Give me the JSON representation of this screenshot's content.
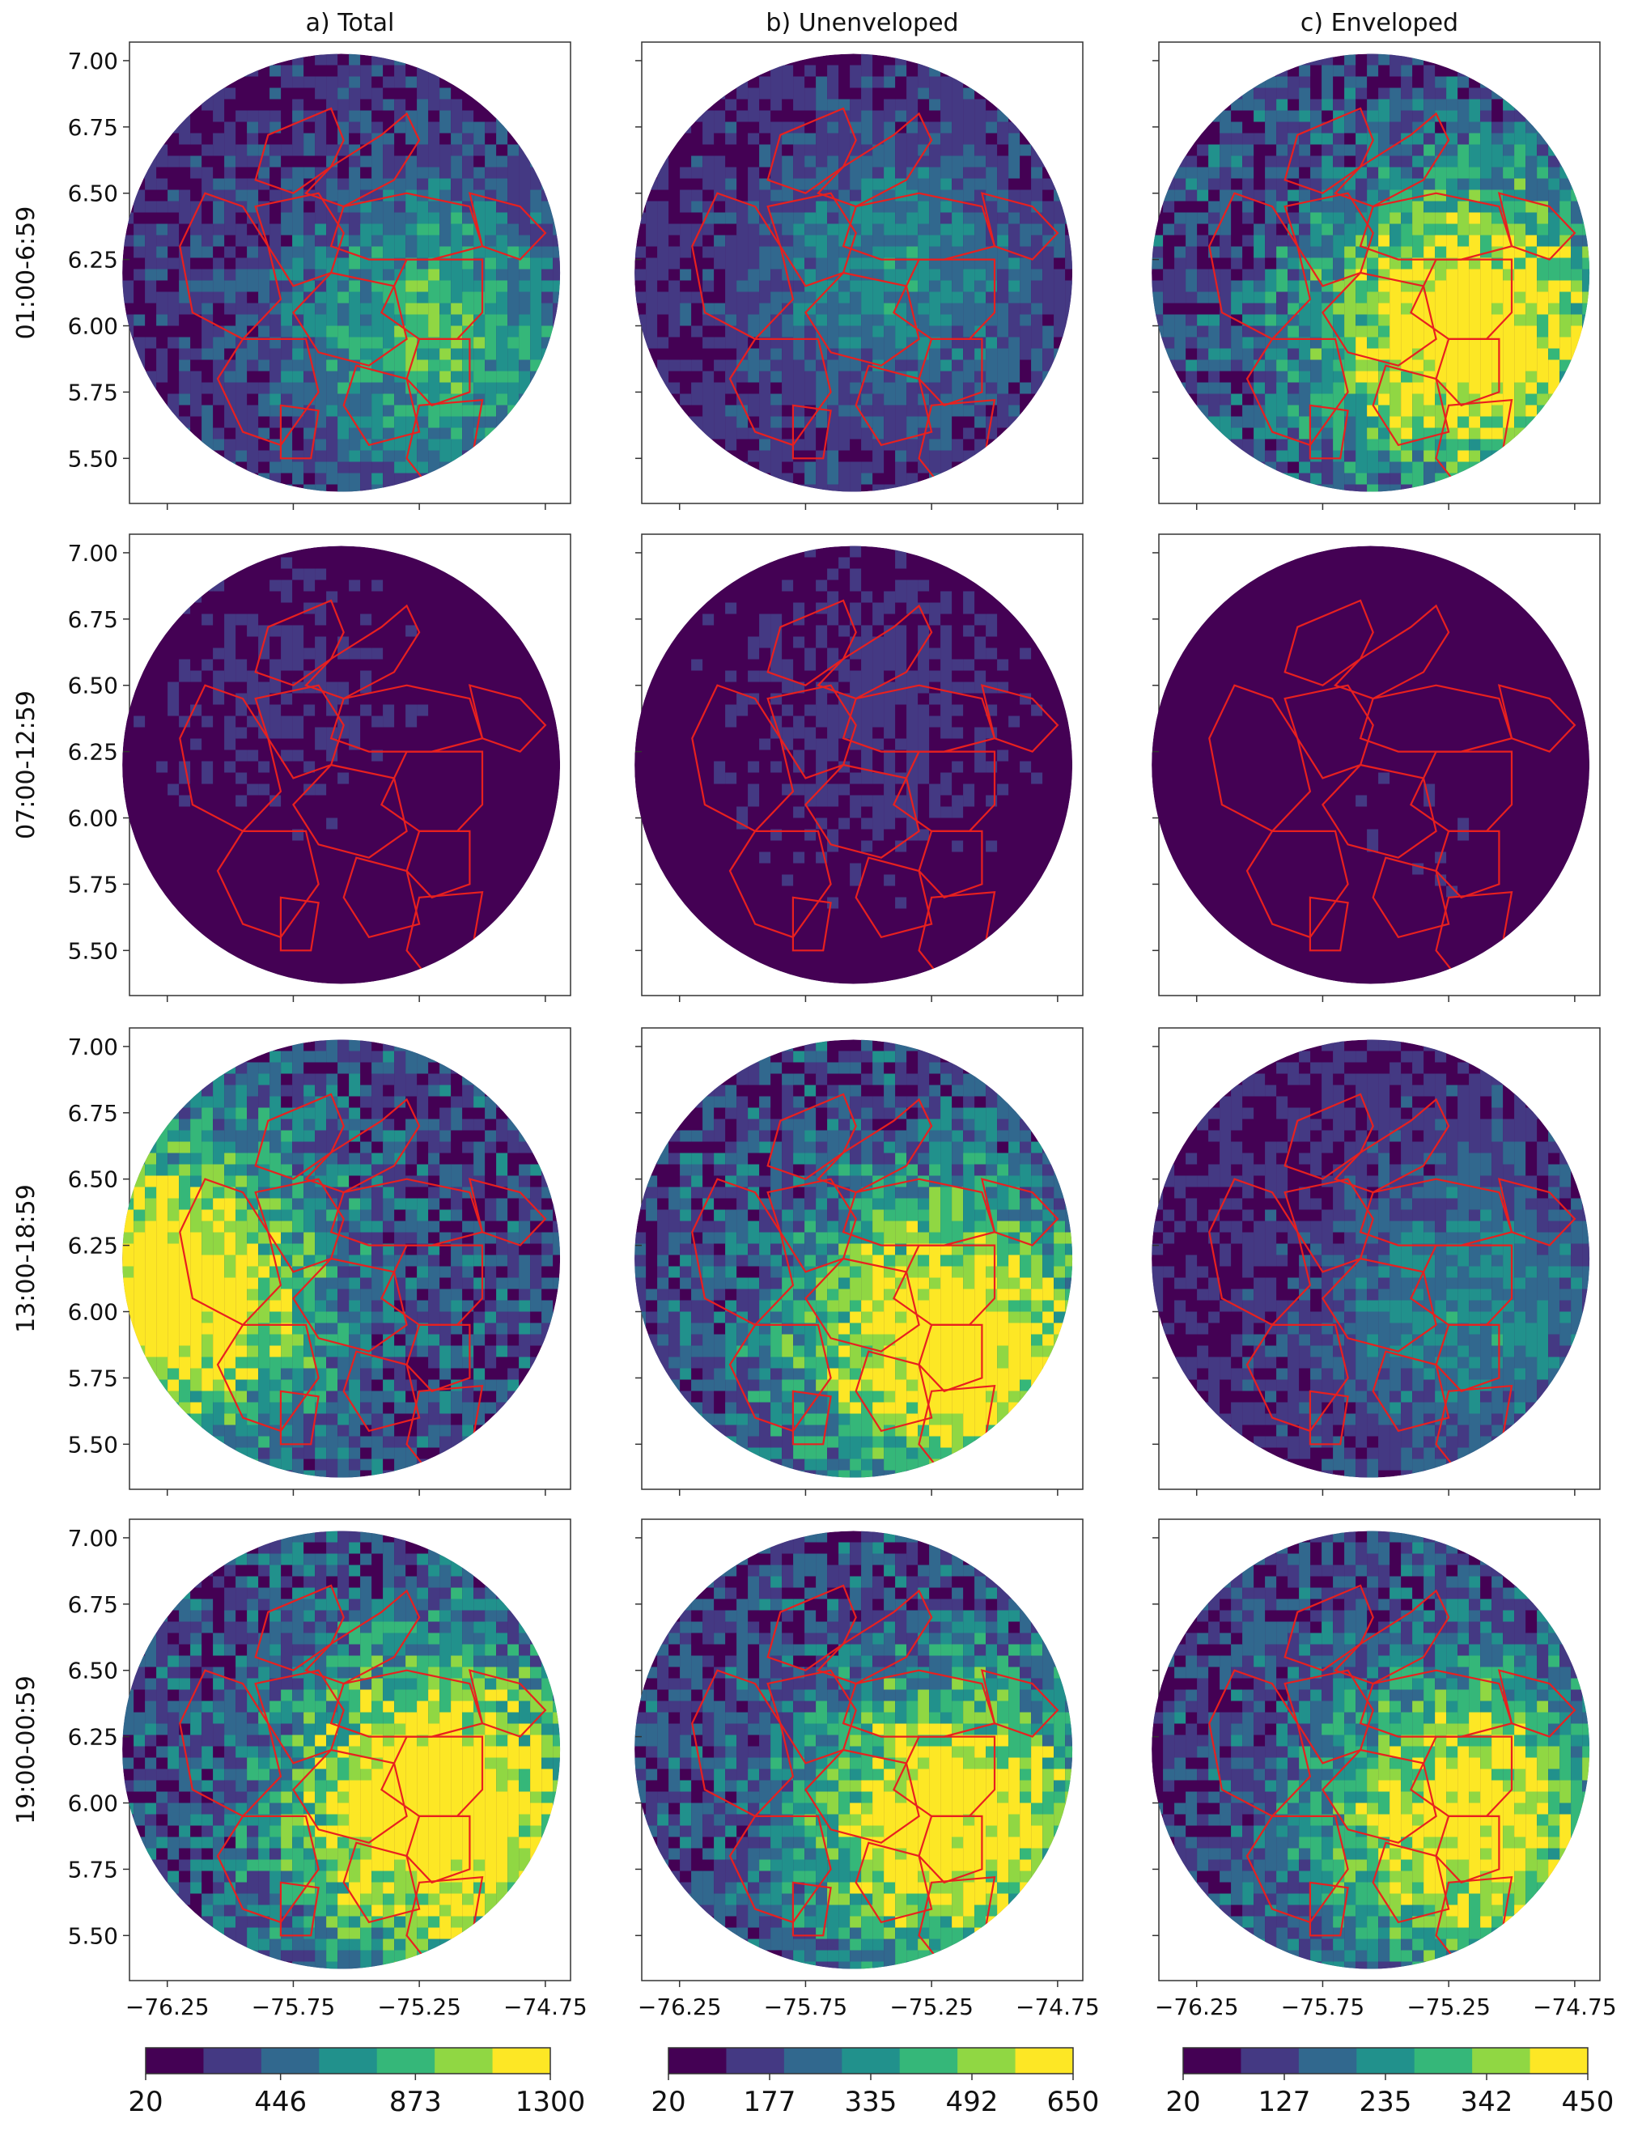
{
  "columns": [
    {
      "title": "a) Total",
      "colorbar_ticks": [
        "20",
        "446",
        "873",
        "1300"
      ],
      "range": [
        20,
        1300
      ]
    },
    {
      "title": "b) Unenveloped",
      "colorbar_ticks": [
        "20",
        "177",
        "335",
        "492",
        "650"
      ],
      "range": [
        20,
        650
      ]
    },
    {
      "title": "c) Enveloped",
      "colorbar_ticks": [
        "20",
        "127",
        "235",
        "342",
        "450"
      ],
      "range": [
        20,
        450
      ]
    }
  ],
  "rows": [
    {
      "label": "01:00-6:59"
    },
    {
      "label": "07:00-12:59"
    },
    {
      "label": "13:00-18:59"
    },
    {
      "label": "19:00-00:59"
    }
  ],
  "y_ticks": [
    "7.00",
    "6.75",
    "6.50",
    "6.25",
    "6.00",
    "5.75",
    "5.50"
  ],
  "x_ticks": [
    "−76.25",
    "−75.75",
    "−75.25",
    "−74.75"
  ],
  "colormap": {
    "name": "viridis (discrete, 7 levels)",
    "colors": [
      "#440154",
      "#443983",
      "#31688e",
      "#21918c",
      "#35b779",
      "#90d743",
      "#fde725"
    ]
  },
  "boundary_color": "#e8201f",
  "chart_data": {
    "type": "heatmap",
    "layout": "4 rows x 3 columns of circular radar-style maps",
    "x_axis": {
      "ticks": [
        -76.25,
        -75.75,
        -75.25,
        -74.75
      ],
      "range": [
        -76.4,
        -74.65
      ]
    },
    "y_axis": {
      "ticks": [
        7.0,
        6.75,
        6.5,
        6.25,
        6.0,
        5.75,
        5.5
      ],
      "range": [
        5.33,
        7.07
      ]
    },
    "hotspots": [
      {
        "row": 0,
        "col": 0,
        "lon": -75.2,
        "lat": 6.0,
        "level": 0.5
      },
      {
        "row": 0,
        "col": 1,
        "lon": -75.4,
        "lat": 6.2,
        "level": 0.35
      },
      {
        "row": 0,
        "col": 2,
        "lon": -75.2,
        "lat": 6.0,
        "level": 0.9
      },
      {
        "row": 1,
        "col": 0,
        "lon": -75.8,
        "lat": 6.5,
        "level": 0.15
      },
      {
        "row": 1,
        "col": 1,
        "lon": -75.5,
        "lat": 6.4,
        "level": 0.2
      },
      {
        "row": 1,
        "col": 2,
        "lon": -75.3,
        "lat": 6.0,
        "level": 0.1
      },
      {
        "row": 2,
        "col": 0,
        "lon": -76.25,
        "lat": 6.1,
        "level": 0.9
      },
      {
        "row": 2,
        "col": 1,
        "lon": -75.2,
        "lat": 5.9,
        "level": 0.9
      },
      {
        "row": 2,
        "col": 2,
        "lon": -75.2,
        "lat": 6.0,
        "level": 0.35
      },
      {
        "row": 3,
        "col": 0,
        "lon": -75.2,
        "lat": 6.0,
        "level": 0.95
      },
      {
        "row": 3,
        "col": 1,
        "lon": -75.2,
        "lat": 5.95,
        "level": 0.85
      },
      {
        "row": 3,
        "col": 2,
        "lon": -75.2,
        "lat": 5.95,
        "level": 0.8
      }
    ]
  }
}
